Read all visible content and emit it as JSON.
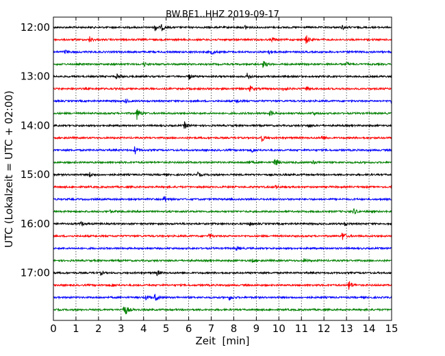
{
  "chart_data": {
    "type": "line",
    "title": "BW.BE1..HHZ 2019-09-17",
    "xlabel": "Zeit  [min]",
    "ylabel": "UTC (Lokalzeit = UTC + 02:00)",
    "xlim": [
      0,
      15
    ],
    "x_ticks": [
      "0",
      "1",
      "2",
      "3",
      "4",
      "5",
      "6",
      "7",
      "8",
      "9",
      "10",
      "11",
      "12",
      "13",
      "14",
      "15"
    ],
    "y_ticks": [
      {
        "label": "12:00",
        "row": 0
      },
      {
        "label": "13:00",
        "row": 4
      },
      {
        "label": "14:00",
        "row": 8
      },
      {
        "label": "15:00",
        "row": 12
      },
      {
        "label": "16:00",
        "row": 16
      },
      {
        "label": "17:00",
        "row": 20
      }
    ],
    "grid": "vertical dotted at each minute",
    "row_colors": [
      "#000000",
      "#ff0000",
      "#0000ff",
      "#008000"
    ],
    "rows": [
      {
        "start": "12:00",
        "events": [
          [
            4.5,
            0.6
          ],
          [
            4.8,
            0.5
          ],
          [
            8.5,
            0.4
          ],
          [
            12.8,
            0.4
          ]
        ]
      },
      {
        "start": "12:15",
        "events": [
          [
            1.6,
            0.5
          ],
          [
            9.7,
            0.4
          ],
          [
            11.2,
            0.8
          ]
        ]
      },
      {
        "start": "12:30",
        "events": [
          [
            0.5,
            0.4
          ],
          [
            7.0,
            0.4
          ],
          [
            9.5,
            0.5
          ]
        ]
      },
      {
        "start": "12:45",
        "events": [
          [
            4.0,
            0.4
          ],
          [
            9.3,
            0.6
          ],
          [
            13.0,
            0.3
          ]
        ]
      },
      {
        "start": "13:00",
        "events": [
          [
            2.8,
            0.5
          ],
          [
            6.0,
            0.5
          ],
          [
            8.6,
            0.6
          ]
        ]
      },
      {
        "start": "13:15",
        "events": [
          [
            8.7,
            0.5
          ],
          [
            10.2,
            0.5
          ],
          [
            11.2,
            0.4
          ]
        ]
      },
      {
        "start": "13:30",
        "events": [
          [
            3.2,
            0.3
          ],
          [
            8.1,
            0.4
          ],
          [
            15.0,
            0.6
          ]
        ]
      },
      {
        "start": "13:45",
        "events": [
          [
            3.7,
            1.0
          ],
          [
            9.6,
            0.5
          ],
          [
            11.5,
            0.3
          ]
        ]
      },
      {
        "start": "14:00",
        "events": [
          [
            5.8,
            0.6
          ],
          [
            11.3,
            0.3
          ]
        ]
      },
      {
        "start": "14:15",
        "events": [
          [
            9.2,
            0.8
          ],
          [
            11.9,
            0.5
          ]
        ]
      },
      {
        "start": "14:30",
        "events": [
          [
            3.6,
            0.7
          ],
          [
            8.8,
            0.4
          ]
        ]
      },
      {
        "start": "14:45",
        "events": [
          [
            8.6,
            0.4
          ],
          [
            9.8,
            0.9
          ],
          [
            11.5,
            0.3
          ]
        ]
      },
      {
        "start": "15:00",
        "events": [
          [
            1.6,
            0.4
          ],
          [
            6.4,
            0.3
          ]
        ]
      },
      {
        "start": "15:15",
        "events": [
          [
            9.8,
            0.3
          ],
          [
            15.0,
            0.5
          ]
        ]
      },
      {
        "start": "15:30",
        "events": [
          [
            4.9,
            0.6
          ]
        ]
      },
      {
        "start": "15:45",
        "events": [
          [
            13.3,
            0.6
          ],
          [
            2.5,
            0.2
          ]
        ]
      },
      {
        "start": "16:00",
        "events": [
          [
            1.2,
            0.4
          ],
          [
            8.7,
            0.3
          ],
          [
            12.9,
            0.3
          ]
        ]
      },
      {
        "start": "16:15",
        "events": [
          [
            6.9,
            0.4
          ],
          [
            12.8,
            0.8
          ]
        ]
      },
      {
        "start": "16:30",
        "events": [
          [
            8.1,
            0.4
          ]
        ]
      },
      {
        "start": "16:45",
        "events": [
          [
            8.8,
            0.3
          ],
          [
            11.1,
            0.3
          ]
        ]
      },
      {
        "start": "17:00",
        "events": [
          [
            2.1,
            0.3
          ],
          [
            4.6,
            0.5
          ]
        ]
      },
      {
        "start": "17:15",
        "events": [
          [
            2.6,
            0.3
          ],
          [
            13.1,
            0.9
          ]
        ]
      },
      {
        "start": "17:30",
        "events": [
          [
            4.1,
            0.4
          ],
          [
            4.5,
            0.7
          ],
          [
            7.8,
            0.4
          ]
        ]
      },
      {
        "start": "17:45",
        "events": [
          [
            3.1,
            0.7
          ],
          [
            3.2,
            0.5
          ]
        ]
      }
    ]
  }
}
